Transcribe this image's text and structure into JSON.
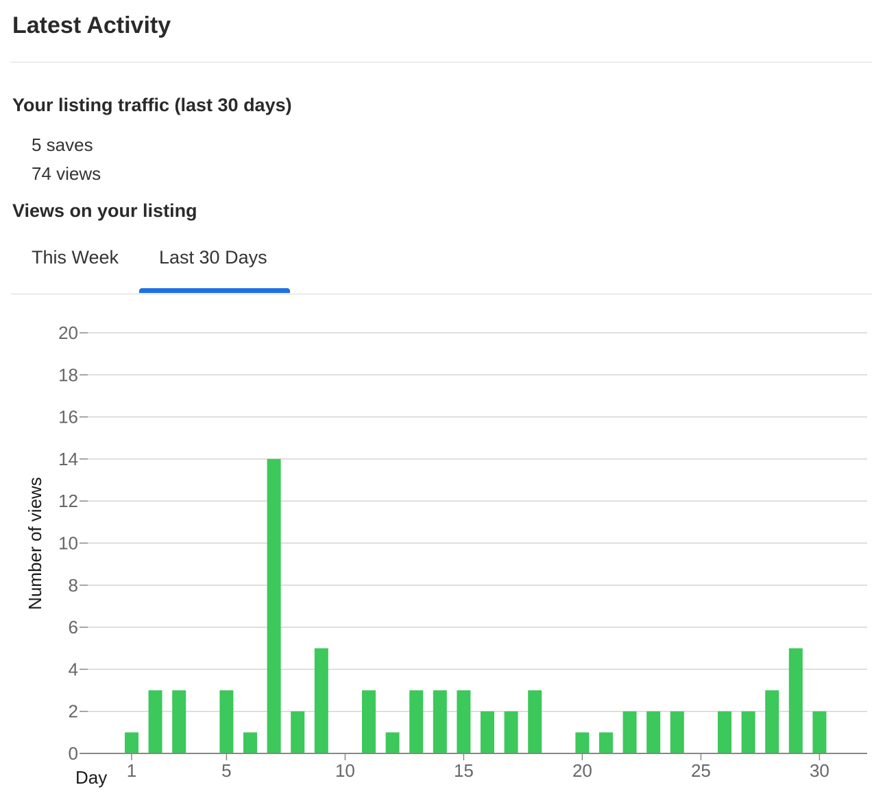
{
  "header": {
    "title": "Latest Activity"
  },
  "traffic": {
    "heading": "Your listing traffic (last 30 days)",
    "saves": "5 saves",
    "views": "74 views"
  },
  "views_section": {
    "heading": "Views on your listing"
  },
  "tabs": [
    {
      "label": "This Week",
      "active": false
    },
    {
      "label": "Last 30 Days",
      "active": true
    }
  ],
  "colors": {
    "bar": "#3cc85a",
    "tab_active": "#1f6fe5",
    "grid": "#d4d4d4"
  },
  "chart_data": {
    "type": "bar",
    "xlabel": "Day",
    "ylabel": "Number of views",
    "x": [
      1,
      2,
      3,
      4,
      5,
      6,
      7,
      8,
      9,
      10,
      11,
      12,
      13,
      14,
      15,
      16,
      17,
      18,
      19,
      20,
      21,
      22,
      23,
      24,
      25,
      26,
      27,
      28,
      29,
      30
    ],
    "values": [
      1,
      3,
      3,
      0,
      3,
      1,
      14,
      2,
      5,
      0,
      3,
      1,
      3,
      3,
      3,
      2,
      2,
      3,
      0,
      1,
      1,
      2,
      2,
      2,
      0,
      2,
      2,
      3,
      5,
      2
    ],
    "xticks": [
      1,
      5,
      10,
      15,
      20,
      25,
      30
    ],
    "yticks": [
      0,
      2,
      4,
      6,
      8,
      10,
      12,
      14,
      16,
      18,
      20
    ],
    "ylim": [
      0,
      20
    ],
    "grid": true
  }
}
